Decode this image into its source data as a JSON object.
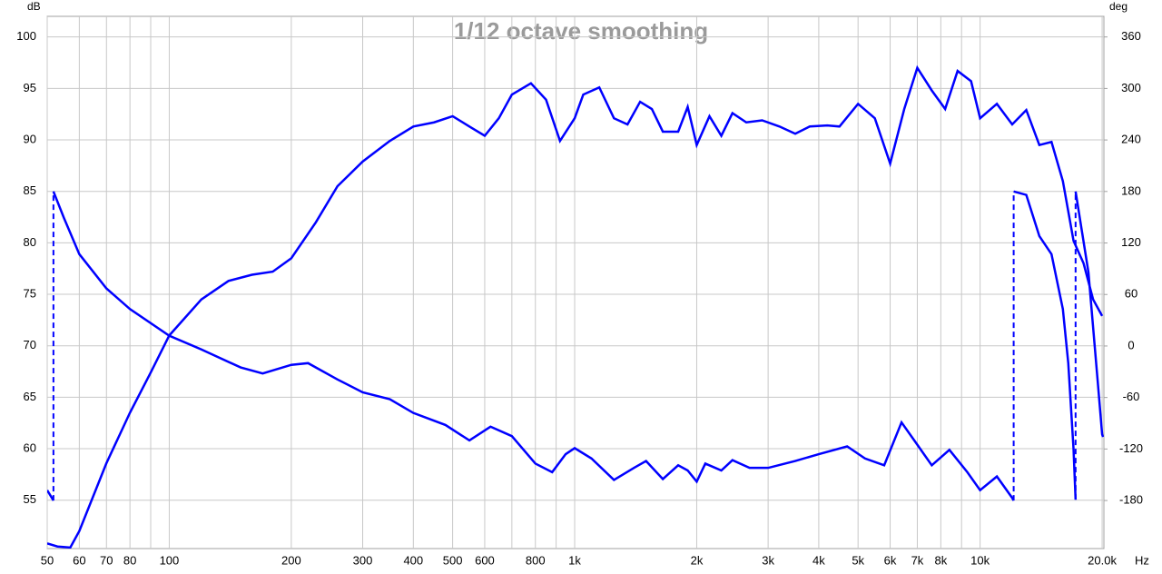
{
  "chart_data": {
    "type": "line",
    "title": "1/12 octave smoothing",
    "y_label": "dB",
    "y2_label": "deg",
    "x_unit": "Hz",
    "log_x": true,
    "grid": true,
    "xlim": [
      50,
      20200
    ],
    "xticks": [
      50,
      60,
      70,
      80,
      100,
      200,
      300,
      400,
      500,
      600,
      800,
      {
        "value": 1000,
        "label": "1k"
      },
      {
        "value": 2000,
        "label": "2k"
      },
      {
        "value": 3000,
        "label": "3k"
      },
      {
        "value": 4000,
        "label": "4k"
      },
      {
        "value": 5000,
        "label": "5k"
      },
      {
        "value": 6000,
        "label": "6k"
      },
      {
        "value": 7000,
        "label": "7k"
      },
      {
        "value": 8000,
        "label": "8k"
      },
      {
        "value": 10000,
        "label": "10k"
      },
      {
        "value": 20000,
        "label": "20.0k"
      }
    ],
    "x_minor_ticks": [
      90,
      700,
      900,
      9000
    ],
    "ylim": [
      50.3,
      102
    ],
    "yticks": [
      55,
      60,
      65,
      70,
      75,
      80,
      85,
      90,
      95,
      100
    ],
    "y2lim": [
      -236,
      384
    ],
    "y2ticks": [
      -180,
      -120,
      -60,
      0,
      60,
      120,
      180,
      240,
      300,
      360
    ],
    "series": [
      {
        "color": "#0000ff",
        "x": [
          50,
          53,
          57,
          60,
          70,
          80,
          90,
          100,
          120,
          140,
          160,
          180,
          200,
          230,
          260,
          300,
          350,
          400,
          450,
          500,
          550,
          600,
          650,
          700,
          780,
          850,
          920,
          1000,
          1050,
          1150,
          1250,
          1350,
          1450,
          1550,
          1650,
          1800,
          1900,
          2000,
          2150,
          2300,
          2450,
          2650,
          2900,
          3200,
          3500,
          3800,
          4200,
          4500,
          5000,
          5500,
          6000,
          6500,
          7000,
          7600,
          8200,
          8800,
          9500,
          10000,
          11000,
          12000,
          13000,
          14000,
          15000,
          16000,
          17000,
          18000,
          19000,
          20000
        ],
        "values": [
          50.8,
          50.5,
          50.4,
          52.0,
          58.6,
          63.5,
          67.4,
          71.0,
          74.5,
          76.3,
          76.9,
          77.2,
          78.5,
          82.0,
          85.5,
          87.9,
          89.9,
          91.3,
          91.7,
          92.3,
          91.3,
          90.4,
          92.1,
          94.4,
          95.5,
          93.9,
          89.9,
          92.1,
          94.4,
          95.1,
          92.1,
          91.5,
          93.7,
          93.0,
          90.8,
          90.8,
          93.2,
          89.5,
          92.3,
          90.4,
          92.6,
          91.7,
          91.9,
          91.3,
          90.6,
          91.3,
          91.4,
          91.3,
          93.5,
          92.1,
          87.7,
          93.0,
          97.0,
          94.8,
          93.0,
          96.7,
          95.7,
          92.1,
          93.5,
          91.5,
          92.9,
          89.5,
          89.8,
          86.0,
          80.2,
          78.0,
          74.5,
          72.9
        ]
      },
      {
        "color": "#0000ff",
        "axis": "y2",
        "x": [
          50,
          51.8,
          51.8,
          55,
          60,
          70,
          80,
          100,
          120,
          150,
          170,
          200,
          220,
          260,
          300,
          350,
          400,
          480,
          550,
          620,
          700,
          800,
          880,
          950,
          1000,
          1100,
          1250,
          1400,
          1500,
          1650,
          1800,
          1900,
          2000,
          2100,
          2300,
          2450,
          2700,
          3000,
          3500,
          4000,
          4700,
          5200,
          5800,
          6400,
          7000,
          7600,
          8400,
          9300,
          10000,
          11000,
          12000,
          12100,
          12100,
          13000,
          14000,
          15000,
          16000,
          16500,
          17000,
          17200,
          17200,
          18500,
          19500,
          20000,
          20100
        ],
        "values": [
          -168,
          -180,
          180,
          149,
          107,
          67,
          43,
          12,
          -4,
          -25,
          -32,
          -22,
          -20,
          -39,
          -54,
          -62,
          -78,
          -92,
          -110,
          -94,
          -105,
          -137,
          -147,
          -126,
          -119,
          -131,
          -156,
          -142,
          -134,
          -155,
          -139,
          -145,
          -158,
          -137,
          -145,
          -133,
          -142,
          -142,
          -134,
          -126,
          -117,
          -131,
          -139,
          -89,
          -115,
          -139,
          -121,
          -147,
          -168,
          -152,
          -177,
          -180,
          180,
          176,
          128,
          107,
          43,
          -20,
          -120,
          -179,
          180,
          86,
          -41,
          -103,
          -106
        ]
      }
    ]
  }
}
